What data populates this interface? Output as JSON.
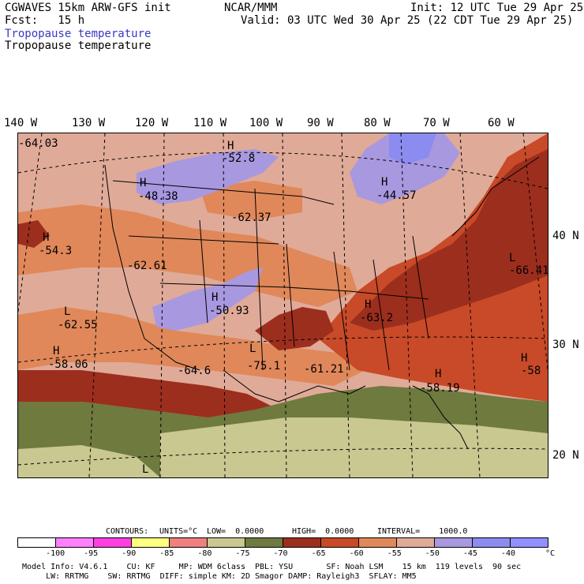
{
  "header": {
    "left_line1": "CGWAVES 15km ARW-GFS init",
    "center_line1": "NCAR/MMM",
    "right_line1": "Init: 12 UTC Tue 29 Apr 25",
    "left_line2": "Fcst:   15 h",
    "right_line2": "Valid: 03 UTC Wed 30 Apr 25 (22 CDT Tue 29 Apr 25)",
    "field_title_color": "Tropopause temperature",
    "field_title_black": "Tropopause temperature"
  },
  "longitude_labels": [
    "140 W",
    "130 W",
    "120 W",
    "110 W",
    "100 W",
    "90 W",
    "80 W",
    "70 W",
    "60 W"
  ],
  "latitude_labels": [
    "40 N",
    "30 N",
    "20 N"
  ],
  "map_labels": [
    {
      "letter": "",
      "value": "-64.03"
    },
    {
      "letter": "H",
      "value": "-52.8"
    },
    {
      "letter": "H",
      "value": "-48.38"
    },
    {
      "letter": "H",
      "value": "-44.57"
    },
    {
      "letter": "",
      "value": "-62.37"
    },
    {
      "letter": "H",
      "value": "-54.3"
    },
    {
      "letter": "",
      "value": "-62.61"
    },
    {
      "letter": "L",
      "value": "-66.41"
    },
    {
      "letter": "H",
      "value": "-50.93"
    },
    {
      "letter": "L",
      "value": "-62.55"
    },
    {
      "letter": "H",
      "value": "-63.2"
    },
    {
      "letter": "H",
      "value": "-58.06"
    },
    {
      "letter": "",
      "value": "-64.6"
    },
    {
      "letter": "L",
      "value": "-75.1"
    },
    {
      "letter": "",
      "value": "-61.21"
    },
    {
      "letter": "H",
      "value": "-58"
    },
    {
      "letter": "H",
      "value": "-58.19"
    },
    {
      "letter": "L",
      "value": ""
    }
  ],
  "contour_info": {
    "contours": "CONTOURS:",
    "units": "UNITS=°C",
    "low": "LOW=  0.0000",
    "high": "HIGH=  0.0000",
    "interval": "INTERVAL=    1000.0"
  },
  "colorbar": {
    "colors": [
      "#ffffff",
      "#ff80ff",
      "#ff40e0",
      "#ffff80",
      "#f08080",
      "#c8c890",
      "#6e7a3e",
      "#9c2e1e",
      "#c84a28",
      "#e0885a",
      "#e0aa98",
      "#a898e0",
      "#8c8cf0",
      "#9090ff"
    ],
    "labels": [
      "-100",
      "-95",
      "-90",
      "-85",
      "-80",
      "-75",
      "-70",
      "-65",
      "-60",
      "-55",
      "-50",
      "-45",
      "-40",
      "°C"
    ]
  },
  "footer": {
    "line1": "Model Info: V4.6.1    CU: KF     MP: WDM 6class  PBL: YSU       SF: Noah LSM    15 km  119 levels  90 sec",
    "line2": "     LW: RRTMG    SW: RRTMG  DIFF: simple KM: 2D Smagor DAMP: Rayleigh3  SFLAY: MM5"
  }
}
